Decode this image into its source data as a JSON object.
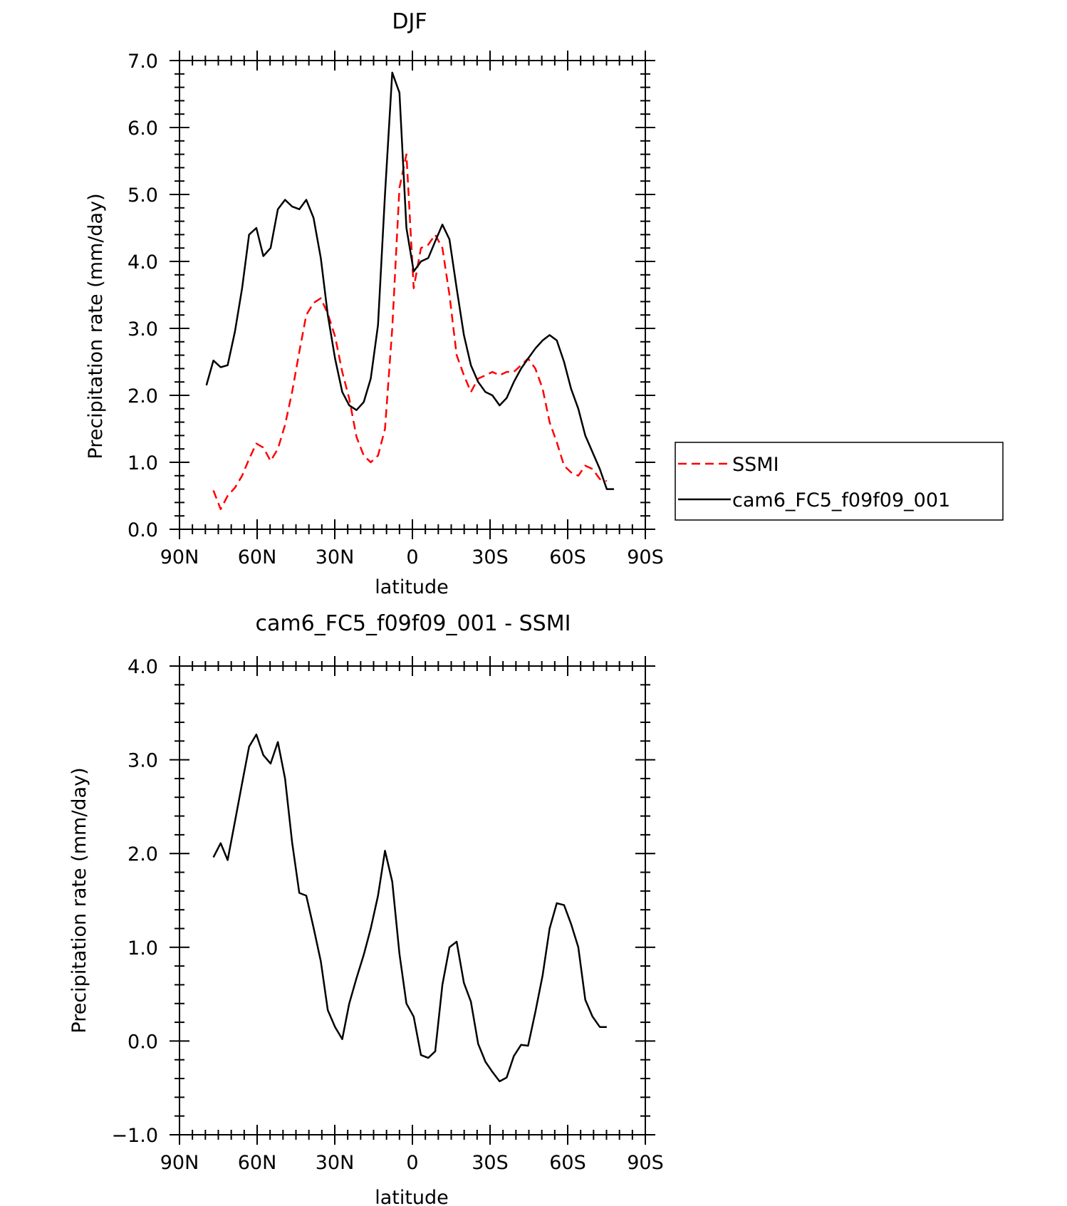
{
  "chart_data": [
    {
      "type": "line",
      "title": "DJF",
      "xlabel": "latitude",
      "ylabel": "Precipitation rate (mm/day)",
      "xlim": [
        -90,
        90
      ],
      "ylim": [
        0.0,
        7.0
      ],
      "xticks": [
        {
          "value": -90,
          "label": "90N"
        },
        {
          "value": -60,
          "label": "60N"
        },
        {
          "value": -30,
          "label": "30N"
        },
        {
          "value": 0,
          "label": "0"
        },
        {
          "value": 30,
          "label": "30S"
        },
        {
          "value": 60,
          "label": "60S"
        },
        {
          "value": 90,
          "label": "90S"
        }
      ],
      "yticks": [
        {
          "value": 0.0,
          "label": "0.0"
        },
        {
          "value": 1.0,
          "label": "1.0"
        },
        {
          "value": 2.0,
          "label": "2.0"
        },
        {
          "value": 3.0,
          "label": "3.0"
        },
        {
          "value": 4.0,
          "label": "4.0"
        },
        {
          "value": 5.0,
          "label": "5.0"
        },
        {
          "value": 6.0,
          "label": "6.0"
        },
        {
          "value": 7.0,
          "label": "7.0"
        }
      ],
      "legend": {
        "placement": "right",
        "entries": [
          {
            "name": "SSMI",
            "color": "#ff0000",
            "style": "dashed"
          },
          {
            "name": "cam6_FC5_f09f09_001",
            "color": "#000000",
            "style": "solid"
          }
        ]
      },
      "series": [
        {
          "name": "SSMI",
          "color": "#ff0000",
          "style": "dashed",
          "x": [
            -76.9,
            -74.1,
            -71.4,
            -68.6,
            -65.8,
            -63.1,
            -60.3,
            -57.6,
            -54.8,
            -52,
            -49.2,
            -46.5,
            -43.7,
            -41,
            -38.2,
            -35.4,
            -32.7,
            -29.9,
            -27.1,
            -24.4,
            -21.6,
            -18.8,
            -16.1,
            -13.3,
            -10.6,
            -7.8,
            -5,
            -2.3,
            0.5,
            3.3,
            6.1,
            8.8,
            11.6,
            14.3,
            17.1,
            19.9,
            22.6,
            25.4,
            28.2,
            30.9,
            33.7,
            36.4,
            39.2,
            42,
            44.7,
            47.5,
            50.3,
            53,
            55.8,
            58.6,
            61.3,
            64.1,
            66.8,
            69.6,
            72.4,
            75.1
          ],
          "y": [
            0.58,
            0.3,
            0.5,
            0.62,
            0.8,
            1.05,
            1.28,
            1.22,
            1.02,
            1.2,
            1.56,
            2.05,
            2.65,
            3.2,
            3.38,
            3.45,
            3.22,
            2.88,
            2.35,
            1.95,
            1.38,
            1.1,
            1,
            1.1,
            1.5,
            3,
            5.1,
            5.6,
            3.6,
            4.2,
            4.25,
            4.4,
            4.2,
            3.5,
            2.6,
            2.3,
            2.05,
            2.25,
            2.3,
            2.35,
            2.3,
            2.35,
            2.35,
            2.45,
            2.55,
            2.4,
            2.1,
            1.6,
            1.3,
            0.95,
            0.85,
            0.8,
            0.95,
            0.9,
            0.75,
            0.72
          ]
        },
        {
          "name": "cam6_FC5_f09f09_001",
          "color": "#000000",
          "style": "solid",
          "x": [
            -79.6,
            -76.9,
            -74.1,
            -71.4,
            -68.6,
            -65.8,
            -63.1,
            -60.3,
            -57.6,
            -54.8,
            -52,
            -49.2,
            -46.5,
            -43.7,
            -41,
            -38.2,
            -35.4,
            -32.7,
            -29.9,
            -27.1,
            -24.4,
            -21.6,
            -18.8,
            -16.1,
            -13.3,
            -10.6,
            -7.8,
            -5,
            -2.3,
            0.5,
            3.3,
            6.1,
            8.8,
            11.6,
            14.3,
            17.1,
            19.9,
            22.6,
            25.4,
            28.2,
            30.9,
            33.7,
            36.4,
            39.2,
            42,
            44.7,
            47.5,
            50.3,
            53,
            55.8,
            58.6,
            61.3,
            64.1,
            66.8,
            69.6,
            72.4,
            75.1,
            77.9
          ],
          "y": [
            2.15,
            2.52,
            2.42,
            2.45,
            2.95,
            3.6,
            4.4,
            4.5,
            4.08,
            4.2,
            4.78,
            4.92,
            4.82,
            4.78,
            4.92,
            4.65,
            4.05,
            3.2,
            2.55,
            2.05,
            1.85,
            1.78,
            1.9,
            2.25,
            3.05,
            5,
            6.82,
            6.52,
            4.5,
            3.85,
            4,
            4.05,
            4.3,
            4.55,
            4.33,
            3.6,
            2.9,
            2.45,
            2.2,
            2.05,
            2,
            1.85,
            1.96,
            2.2,
            2.4,
            2.55,
            2.7,
            2.82,
            2.9,
            2.82,
            2.5,
            2.1,
            1.8,
            1.4,
            1.15,
            0.9,
            0.6,
            0.6
          ]
        }
      ]
    },
    {
      "type": "line",
      "title": "cam6_FC5_f09f09_001 - SSMI",
      "xlabel": "latitude",
      "ylabel": "Precipitation rate (mm/day)",
      "xlim": [
        -90,
        90
      ],
      "ylim": [
        -1.0,
        4.0
      ],
      "xticks": [
        {
          "value": -90,
          "label": "90N"
        },
        {
          "value": -60,
          "label": "60N"
        },
        {
          "value": -30,
          "label": "30N"
        },
        {
          "value": 0,
          "label": "0"
        },
        {
          "value": 30,
          "label": "30S"
        },
        {
          "value": 60,
          "label": "60S"
        },
        {
          "value": 90,
          "label": "90S"
        }
      ],
      "yticks": [
        {
          "value": -1.0,
          "label": "−1.0"
        },
        {
          "value": 0.0,
          "label": "0.0"
        },
        {
          "value": 1.0,
          "label": "1.0"
        },
        {
          "value": 2.0,
          "label": "2.0"
        },
        {
          "value": 3.0,
          "label": "3.0"
        },
        {
          "value": 4.0,
          "label": "4.0"
        }
      ],
      "series": [
        {
          "name": "cam6_FC5_f09f09_001 - SSMI",
          "color": "#000000",
          "style": "solid",
          "x": [
            -76.9,
            -74.1,
            -71.4,
            -68.6,
            -65.8,
            -63.1,
            -60.3,
            -57.6,
            -54.8,
            -52,
            -49.2,
            -46.5,
            -43.7,
            -41,
            -38.2,
            -35.4,
            -32.7,
            -29.9,
            -27.1,
            -24.4,
            -21.6,
            -18.8,
            -16.1,
            -13.3,
            -10.6,
            -7.8,
            -5,
            -2.3,
            0.5,
            3.3,
            6.1,
            8.8,
            11.6,
            14.3,
            17.1,
            19.9,
            22.6,
            25.4,
            28.2,
            30.9,
            33.7,
            36.4,
            39.2,
            42,
            44.7,
            47.5,
            50.3,
            53,
            55.8,
            58.6,
            61.3,
            64.1,
            66.8,
            69.6,
            72.4,
            75.1
          ],
          "y": [
            1.96,
            2.11,
            1.93,
            2.34,
            2.75,
            3.14,
            3.27,
            3.05,
            2.96,
            3.19,
            2.8,
            2.12,
            1.58,
            1.55,
            1.21,
            0.85,
            0.33,
            0.15,
            0.02,
            0.4,
            0.67,
            0.92,
            1.2,
            1.55,
            2.03,
            1.7,
            0.93,
            0.4,
            0.26,
            -0.15,
            -0.18,
            -0.11,
            0.6,
            1,
            1.06,
            0.62,
            0.42,
            -0.03,
            -0.22,
            -0.33,
            -0.43,
            -0.39,
            -0.16,
            -0.04,
            -0.05,
            0.31,
            0.7,
            1.2,
            1.47,
            1.45,
            1.25,
            1,
            0.44,
            0.26,
            0.15,
            0.15
          ]
        }
      ]
    }
  ]
}
